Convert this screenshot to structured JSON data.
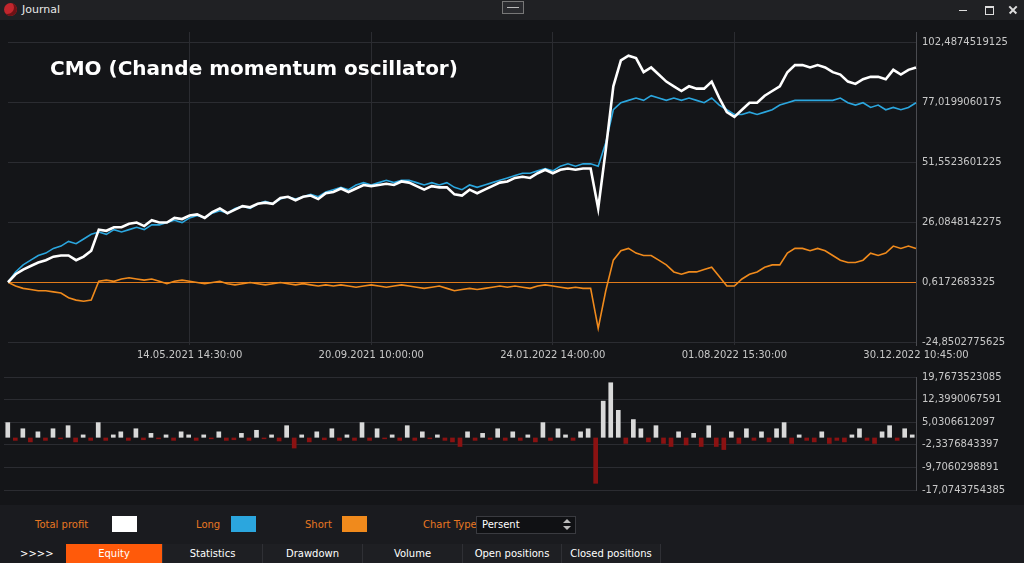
{
  "window": {
    "title": "Journal"
  },
  "chart_data": [
    {
      "type": "line",
      "title": "CMO (Chande momentum oscillator)",
      "categories": [
        null,
        null,
        null,
        null,
        null,
        null,
        null,
        null,
        null,
        null,
        null,
        null,
        null,
        null,
        null,
        null,
        null,
        null,
        null,
        null,
        null,
        null,
        null,
        null,
        "14.05.2021 14:30:00",
        null,
        null,
        null,
        null,
        null,
        null,
        null,
        null,
        null,
        null,
        null,
        null,
        null,
        null,
        null,
        null,
        null,
        null,
        null,
        null,
        null,
        null,
        null,
        "20.09.2021 10:00:00",
        null,
        null,
        null,
        null,
        null,
        null,
        null,
        null,
        null,
        null,
        null,
        null,
        null,
        null,
        null,
        null,
        null,
        null,
        null,
        null,
        null,
        null,
        null,
        "24.01.2022 14:00:00",
        null,
        null,
        null,
        null,
        null,
        null,
        null,
        null,
        null,
        null,
        null,
        null,
        null,
        null,
        null,
        null,
        null,
        null,
        null,
        null,
        null,
        null,
        null,
        "01.08.2022 15:30:00",
        null,
        null,
        null,
        null,
        null,
        null,
        null,
        null,
        null,
        null,
        null,
        null,
        null,
        null,
        null,
        null,
        null,
        null,
        null,
        null,
        null,
        null,
        null,
        "30.12.2022 10:45:00"
      ],
      "series": [
        {
          "name": "Total profit",
          "color": "#ffffff",
          "values": [
            0.6,
            4,
            6,
            7.5,
            9,
            10,
            11.5,
            12,
            12,
            10,
            11.5,
            14,
            23,
            22.5,
            24,
            24,
            25.5,
            26,
            24.5,
            27,
            26,
            26,
            28,
            27.5,
            29,
            29.5,
            28,
            30.5,
            32,
            30,
            31.5,
            33,
            32.5,
            34,
            34.5,
            34,
            36.5,
            37,
            35.5,
            37,
            37.5,
            36,
            38.5,
            39,
            40.5,
            39,
            40.5,
            42,
            41.5,
            42,
            42.5,
            42,
            43.5,
            43,
            41.5,
            40,
            41.5,
            41,
            41,
            38,
            37.5,
            40,
            38.5,
            40,
            41.5,
            43,
            43.5,
            45,
            45.5,
            45,
            47,
            48.5,
            47,
            48.5,
            49,
            48.5,
            49,
            49,
            32,
            57,
            84,
            95,
            97,
            96,
            90,
            92,
            89,
            86,
            84,
            82,
            84,
            83,
            83,
            86,
            79,
            73,
            71,
            74,
            77,
            77,
            80,
            82,
            84,
            90,
            93,
            93,
            92,
            93,
            92,
            90,
            89,
            86,
            85,
            87,
            88,
            88,
            87,
            91,
            89,
            91,
            92
          ]
        },
        {
          "name": "Long",
          "color": "#2ba6de",
          "values": [
            0.6,
            5,
            8,
            10,
            12,
            13,
            15,
            16,
            18,
            17,
            19,
            21,
            22,
            21,
            23,
            22,
            23,
            24,
            23,
            25,
            25,
            26,
            27,
            26,
            28,
            29,
            28,
            30,
            31,
            30,
            32,
            33,
            32,
            34,
            35,
            34,
            36,
            37,
            36,
            37,
            38,
            37,
            39,
            40,
            41,
            40,
            42,
            43,
            42,
            43,
            44,
            43,
            44,
            44,
            43,
            42,
            43,
            42,
            43,
            41,
            40,
            42,
            41,
            42,
            43,
            44,
            45,
            46,
            47,
            47,
            48,
            49,
            48,
            50,
            51,
            50,
            51,
            51,
            50,
            60,
            74,
            77,
            78,
            79,
            78,
            80,
            79,
            78,
            79,
            78,
            79,
            78,
            77,
            79,
            76,
            74,
            72,
            72,
            73,
            72,
            73,
            74,
            76,
            77,
            78,
            78,
            78,
            78,
            78,
            78,
            79,
            77,
            76,
            77,
            75,
            76,
            74,
            75,
            74,
            75,
            77
          ]
        },
        {
          "name": "Short",
          "color": "#f08a1c",
          "values": [
            0.6,
            -1,
            -2,
            -2.5,
            -3,
            -3,
            -3.5,
            -4,
            -6,
            -7,
            -7.5,
            -7,
            1,
            1.5,
            1,
            2,
            2.5,
            2,
            1.5,
            2,
            1,
            0,
            1,
            1.5,
            1,
            0.5,
            0,
            0.5,
            1,
            0,
            -0.5,
            0,
            0.5,
            0,
            -0.5,
            0,
            0.5,
            0,
            -0.5,
            0,
            -0.5,
            -1,
            -0.5,
            -1,
            -0.5,
            -1,
            -1.5,
            -1,
            -0.5,
            -1,
            -1.5,
            -1,
            -0.5,
            -1,
            -1.5,
            -2,
            -1.5,
            -1,
            -2,
            -3,
            -2.5,
            -2,
            -2.5,
            -2,
            -1.5,
            -1,
            -1.5,
            -1,
            -1.5,
            -2,
            -1,
            -0.5,
            -1,
            -1.5,
            -2,
            -1.5,
            -2,
            -2,
            -19,
            -3,
            10,
            14,
            15,
            13,
            12,
            12,
            10,
            8,
            5,
            4,
            5,
            5,
            6,
            7,
            3,
            -1,
            -1,
            2,
            4,
            5,
            7,
            8,
            8,
            13,
            15,
            15,
            14,
            15,
            14,
            12,
            10,
            9,
            9,
            10,
            13,
            12,
            13,
            16,
            15,
            16,
            15
          ]
        }
      ],
      "ylim": [
        -26.1,
        107.1
      ],
      "yticks": [
        {
          "value": -24.8502775625,
          "label": "-24,8502775625"
        },
        {
          "value": 0.6172683325,
          "label": "0,6172683325"
        },
        {
          "value": 26.0848142275,
          "label": "26,0848142275"
        },
        {
          "value": 51.5523601225,
          "label": "51,5523601225"
        },
        {
          "value": 77.0199060175,
          "label": "77,0199060175"
        },
        {
          "value": 102.4874519125,
          "label": "102,4874519125"
        }
      ],
      "grid": true,
      "legend": "bottom"
    },
    {
      "type": "bar",
      "values": [
        5,
        -1,
        3,
        -1.5,
        2,
        -1,
        3,
        -0.5,
        4,
        -1.5,
        1,
        -1,
        5,
        -1,
        1,
        2,
        -1,
        3,
        -0.8,
        1.5,
        -0.5,
        1,
        -1,
        2,
        1,
        -1,
        1,
        -0.5,
        2,
        -1,
        -0.8,
        1.5,
        -1,
        2.5,
        -0.5,
        1,
        -1.2,
        4,
        -3.5,
        1,
        -1.5,
        2,
        -0.8,
        3,
        -1,
        1,
        -1,
        5,
        -1,
        3,
        -0.5,
        1,
        -1,
        4,
        -1,
        2,
        -0.5,
        1,
        -1,
        -1.5,
        -3,
        2,
        -1,
        1.5,
        -0.7,
        3,
        -1,
        2,
        -1,
        1,
        -1.5,
        5,
        -1,
        3,
        1,
        -1,
        2,
        3,
        -15,
        12,
        18,
        9,
        -2,
        6,
        3,
        -1.5,
        4,
        -2,
        -3,
        2,
        -2.5,
        1.5,
        -3,
        4,
        -3,
        -4,
        2,
        -2,
        3,
        -1,
        2,
        -1.5,
        3,
        5,
        -2,
        1,
        -1,
        -1.5,
        2,
        -2,
        -1,
        -1.5,
        1,
        3,
        -1,
        -2,
        2,
        4,
        -1,
        3,
        1
      ],
      "colors": [
        "#d9d9d9",
        "#8b1212",
        "#d9d9d9",
        "#8b1212",
        "#d9d9d9",
        "#8b1212",
        "#d9d9d9",
        "#8b1212",
        "#d9d9d9",
        "#8b1212",
        "#d9d9d9",
        "#8b1212",
        "#d9d9d9",
        "#8b1212",
        "#d9d9d9",
        "#d9d9d9",
        "#8b1212",
        "#d9d9d9",
        "#8b1212",
        "#d9d9d9",
        "#8b1212",
        "#d9d9d9",
        "#8b1212",
        "#d9d9d9",
        "#d9d9d9",
        "#8b1212",
        "#d9d9d9",
        "#8b1212",
        "#d9d9d9",
        "#8b1212",
        "#8b1212",
        "#d9d9d9",
        "#8b1212",
        "#d9d9d9",
        "#8b1212",
        "#d9d9d9",
        "#8b1212",
        "#d9d9d9",
        "#8b1212",
        "#d9d9d9",
        "#8b1212",
        "#d9d9d9",
        "#8b1212",
        "#d9d9d9",
        "#8b1212",
        "#d9d9d9",
        "#8b1212",
        "#d9d9d9",
        "#8b1212",
        "#d9d9d9",
        "#8b1212",
        "#d9d9d9",
        "#8b1212",
        "#d9d9d9",
        "#8b1212",
        "#d9d9d9",
        "#8b1212",
        "#d9d9d9",
        "#8b1212",
        "#8b1212",
        "#8b1212",
        "#d9d9d9",
        "#8b1212",
        "#d9d9d9",
        "#8b1212",
        "#d9d9d9",
        "#8b1212",
        "#d9d9d9",
        "#8b1212",
        "#d9d9d9",
        "#8b1212",
        "#d9d9d9",
        "#8b1212",
        "#d9d9d9",
        "#d9d9d9",
        "#8b1212",
        "#d9d9d9",
        "#d9d9d9",
        "#8b1212",
        "#d9d9d9",
        "#d9d9d9",
        "#d9d9d9",
        "#8b1212",
        "#d9d9d9",
        "#d9d9d9",
        "#8b1212",
        "#d9d9d9",
        "#8b1212",
        "#8b1212",
        "#d9d9d9",
        "#8b1212",
        "#d9d9d9",
        "#8b1212",
        "#d9d9d9",
        "#8b1212",
        "#8b1212",
        "#d9d9d9",
        "#8b1212",
        "#d9d9d9",
        "#8b1212",
        "#d9d9d9",
        "#8b1212",
        "#d9d9d9",
        "#d9d9d9",
        "#8b1212",
        "#d9d9d9",
        "#8b1212",
        "#8b1212",
        "#d9d9d9",
        "#8b1212",
        "#8b1212",
        "#8b1212",
        "#d9d9d9",
        "#d9d9d9",
        "#8b1212",
        "#8b1212",
        "#d9d9d9",
        "#d9d9d9",
        "#8b1212",
        "#d9d9d9",
        "#d9d9d9"
      ],
      "ylim": [
        -17.0743754385,
        19.7673523085
      ],
      "yticks": [
        {
          "value": -17.0743754385,
          "label": "-17,0743754385"
        },
        {
          "value": -9.7060298891,
          "label": "-9,7060298891"
        },
        {
          "value": -2.3376843397,
          "label": "-2,3376843397"
        },
        {
          "value": 5.0306612097,
          "label": "5,0306612097"
        },
        {
          "value": 12.3990067591,
          "label": "12,3990067591"
        },
        {
          "value": 19.7673523085,
          "label": "19,7673523085"
        }
      ],
      "grid": true,
      "tick_labels": "y"
    }
  ],
  "controls": {
    "chart_type_label": "Chart Type",
    "chart_type_value": "Persent"
  },
  "tabs": {
    "items": [
      ">>>>",
      "Equity",
      "Statistics",
      "Drawdown",
      "Volume",
      "Open positions",
      "Closed positions"
    ],
    "active": "Equity"
  }
}
